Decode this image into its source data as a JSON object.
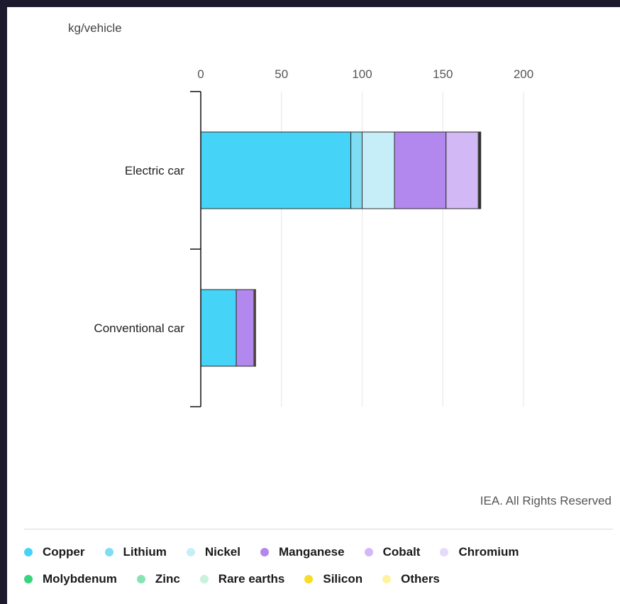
{
  "chart_data": {
    "type": "bar",
    "orientation": "horizontal",
    "stacked": true,
    "unit_label": "kg/vehicle",
    "categories": [
      "Electric car",
      "Conventional car"
    ],
    "xlim": [
      0,
      200
    ],
    "xticks": [
      0,
      50,
      100,
      150,
      200
    ],
    "grid": true,
    "series": [
      {
        "name": "Copper",
        "color": "#45d3f7",
        "values": [
          93,
          22
        ]
      },
      {
        "name": "Lithium",
        "color": "#7fdcf3",
        "values": [
          7,
          0
        ]
      },
      {
        "name": "Nickel",
        "color": "#c6eef9",
        "values": [
          20,
          0
        ]
      },
      {
        "name": "Manganese",
        "color": "#b287ee",
        "values": [
          32,
          11
        ]
      },
      {
        "name": "Cobalt",
        "color": "#d2b8f5",
        "values": [
          20,
          0
        ]
      },
      {
        "name": "Chromium",
        "color": "#e4dafa",
        "values": [
          0,
          0
        ]
      },
      {
        "name": "Molybdenum",
        "color": "#38d47e",
        "values": [
          0,
          0
        ]
      },
      {
        "name": "Zinc",
        "color": "#86e4b4",
        "values": [
          0,
          0
        ]
      },
      {
        "name": "Rare earths",
        "color": "#c9f2dc",
        "values": [
          0.5,
          0
        ]
      },
      {
        "name": "Silicon",
        "color": "#f7de25",
        "values": [
          0.5,
          0
        ]
      },
      {
        "name": "Others",
        "color": "#6b5a4a",
        "values": [
          0.5,
          1
        ]
      }
    ],
    "legend_position": "bottom"
  },
  "credit": "IEA. All Rights Reserved",
  "legend": [
    {
      "label": "Copper",
      "color": "#45d3f7"
    },
    {
      "label": "Lithium",
      "color": "#7fdcf3"
    },
    {
      "label": "Nickel",
      "color": "#c6eef9"
    },
    {
      "label": "Manganese",
      "color": "#b287ee"
    },
    {
      "label": "Cobalt",
      "color": "#d2b8f5"
    },
    {
      "label": "Chromium",
      "color": "#e4dafa"
    },
    {
      "label": "Molybdenum",
      "color": "#38d47e"
    },
    {
      "label": "Zinc",
      "color": "#86e4b4"
    },
    {
      "label": "Rare earths",
      "color": "#c9f2dc"
    },
    {
      "label": "Silicon",
      "color": "#f7de25"
    },
    {
      "label": "Others",
      "color": "#fff3a0"
    }
  ]
}
